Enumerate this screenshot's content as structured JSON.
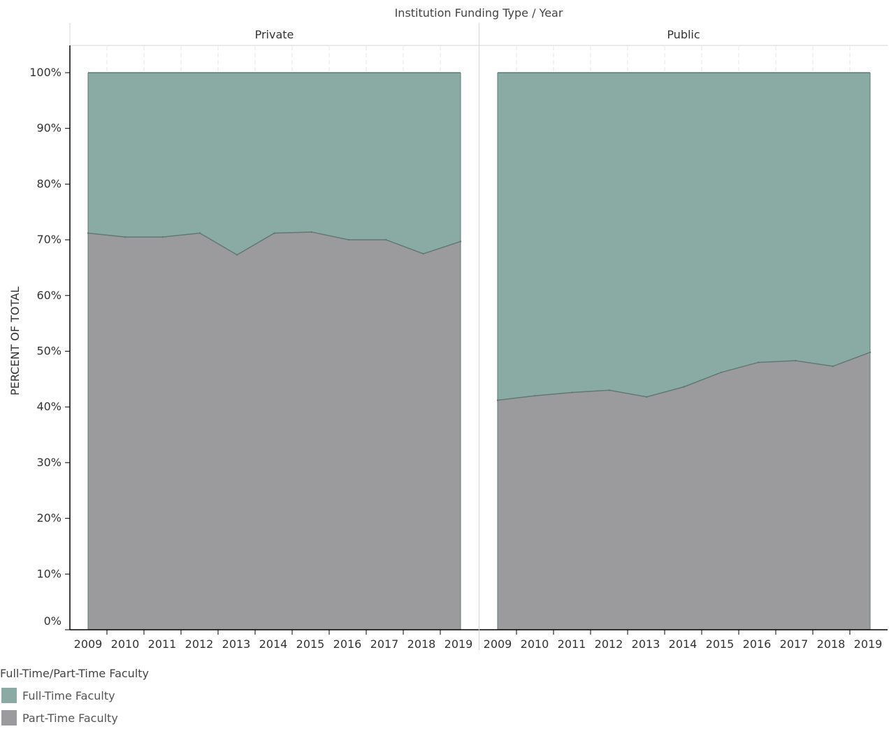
{
  "chart_data": {
    "type": "area",
    "stacked": "percent",
    "title": "Institution Funding Type / Year",
    "ylabel": "PERCENT OF TOTAL",
    "ylim": [
      0,
      100
    ],
    "y_ticks": [
      "0%",
      "10%",
      "20%",
      "30%",
      "40%",
      "50%",
      "60%",
      "70%",
      "80%",
      "90%",
      "100%"
    ],
    "x": [
      "2009",
      "2010",
      "2011",
      "2012",
      "2013",
      "2014",
      "2015",
      "2016",
      "2017",
      "2018",
      "2019"
    ],
    "panels": [
      {
        "name": "Private",
        "series": [
          {
            "name": "Part-Time Faculty",
            "values": [
              71.2,
              70.5,
              70.5,
              71.2,
              67.3,
              71.2,
              71.4,
              70.0,
              70.0,
              67.5,
              69.7
            ]
          },
          {
            "name": "Full-Time Faculty",
            "values": [
              28.8,
              29.5,
              29.5,
              28.8,
              32.7,
              28.8,
              28.6,
              30.0,
              30.0,
              32.5,
              30.3
            ]
          }
        ]
      },
      {
        "name": "Public",
        "series": [
          {
            "name": "Part-Time Faculty",
            "values": [
              41.2,
              42.0,
              42.6,
              43.0,
              41.8,
              43.6,
              46.2,
              48.0,
              48.3,
              47.3,
              49.8
            ]
          },
          {
            "name": "Full-Time Faculty",
            "values": [
              58.8,
              58.0,
              57.4,
              57.0,
              58.2,
              56.4,
              53.8,
              52.0,
              51.7,
              52.7,
              50.2
            ]
          }
        ]
      }
    ],
    "legend": {
      "title": "Full-Time/Part-Time Faculty",
      "placement": "bottom-left",
      "items": [
        {
          "label": "Full-Time Faculty",
          "color": "#8aaba3"
        },
        {
          "label": "Part-Time Faculty",
          "color": "#9b9b9d"
        }
      ]
    },
    "colors": {
      "full_time": "#8aaba3",
      "part_time": "#9b9b9d",
      "boundary": "#5f7a72"
    }
  }
}
